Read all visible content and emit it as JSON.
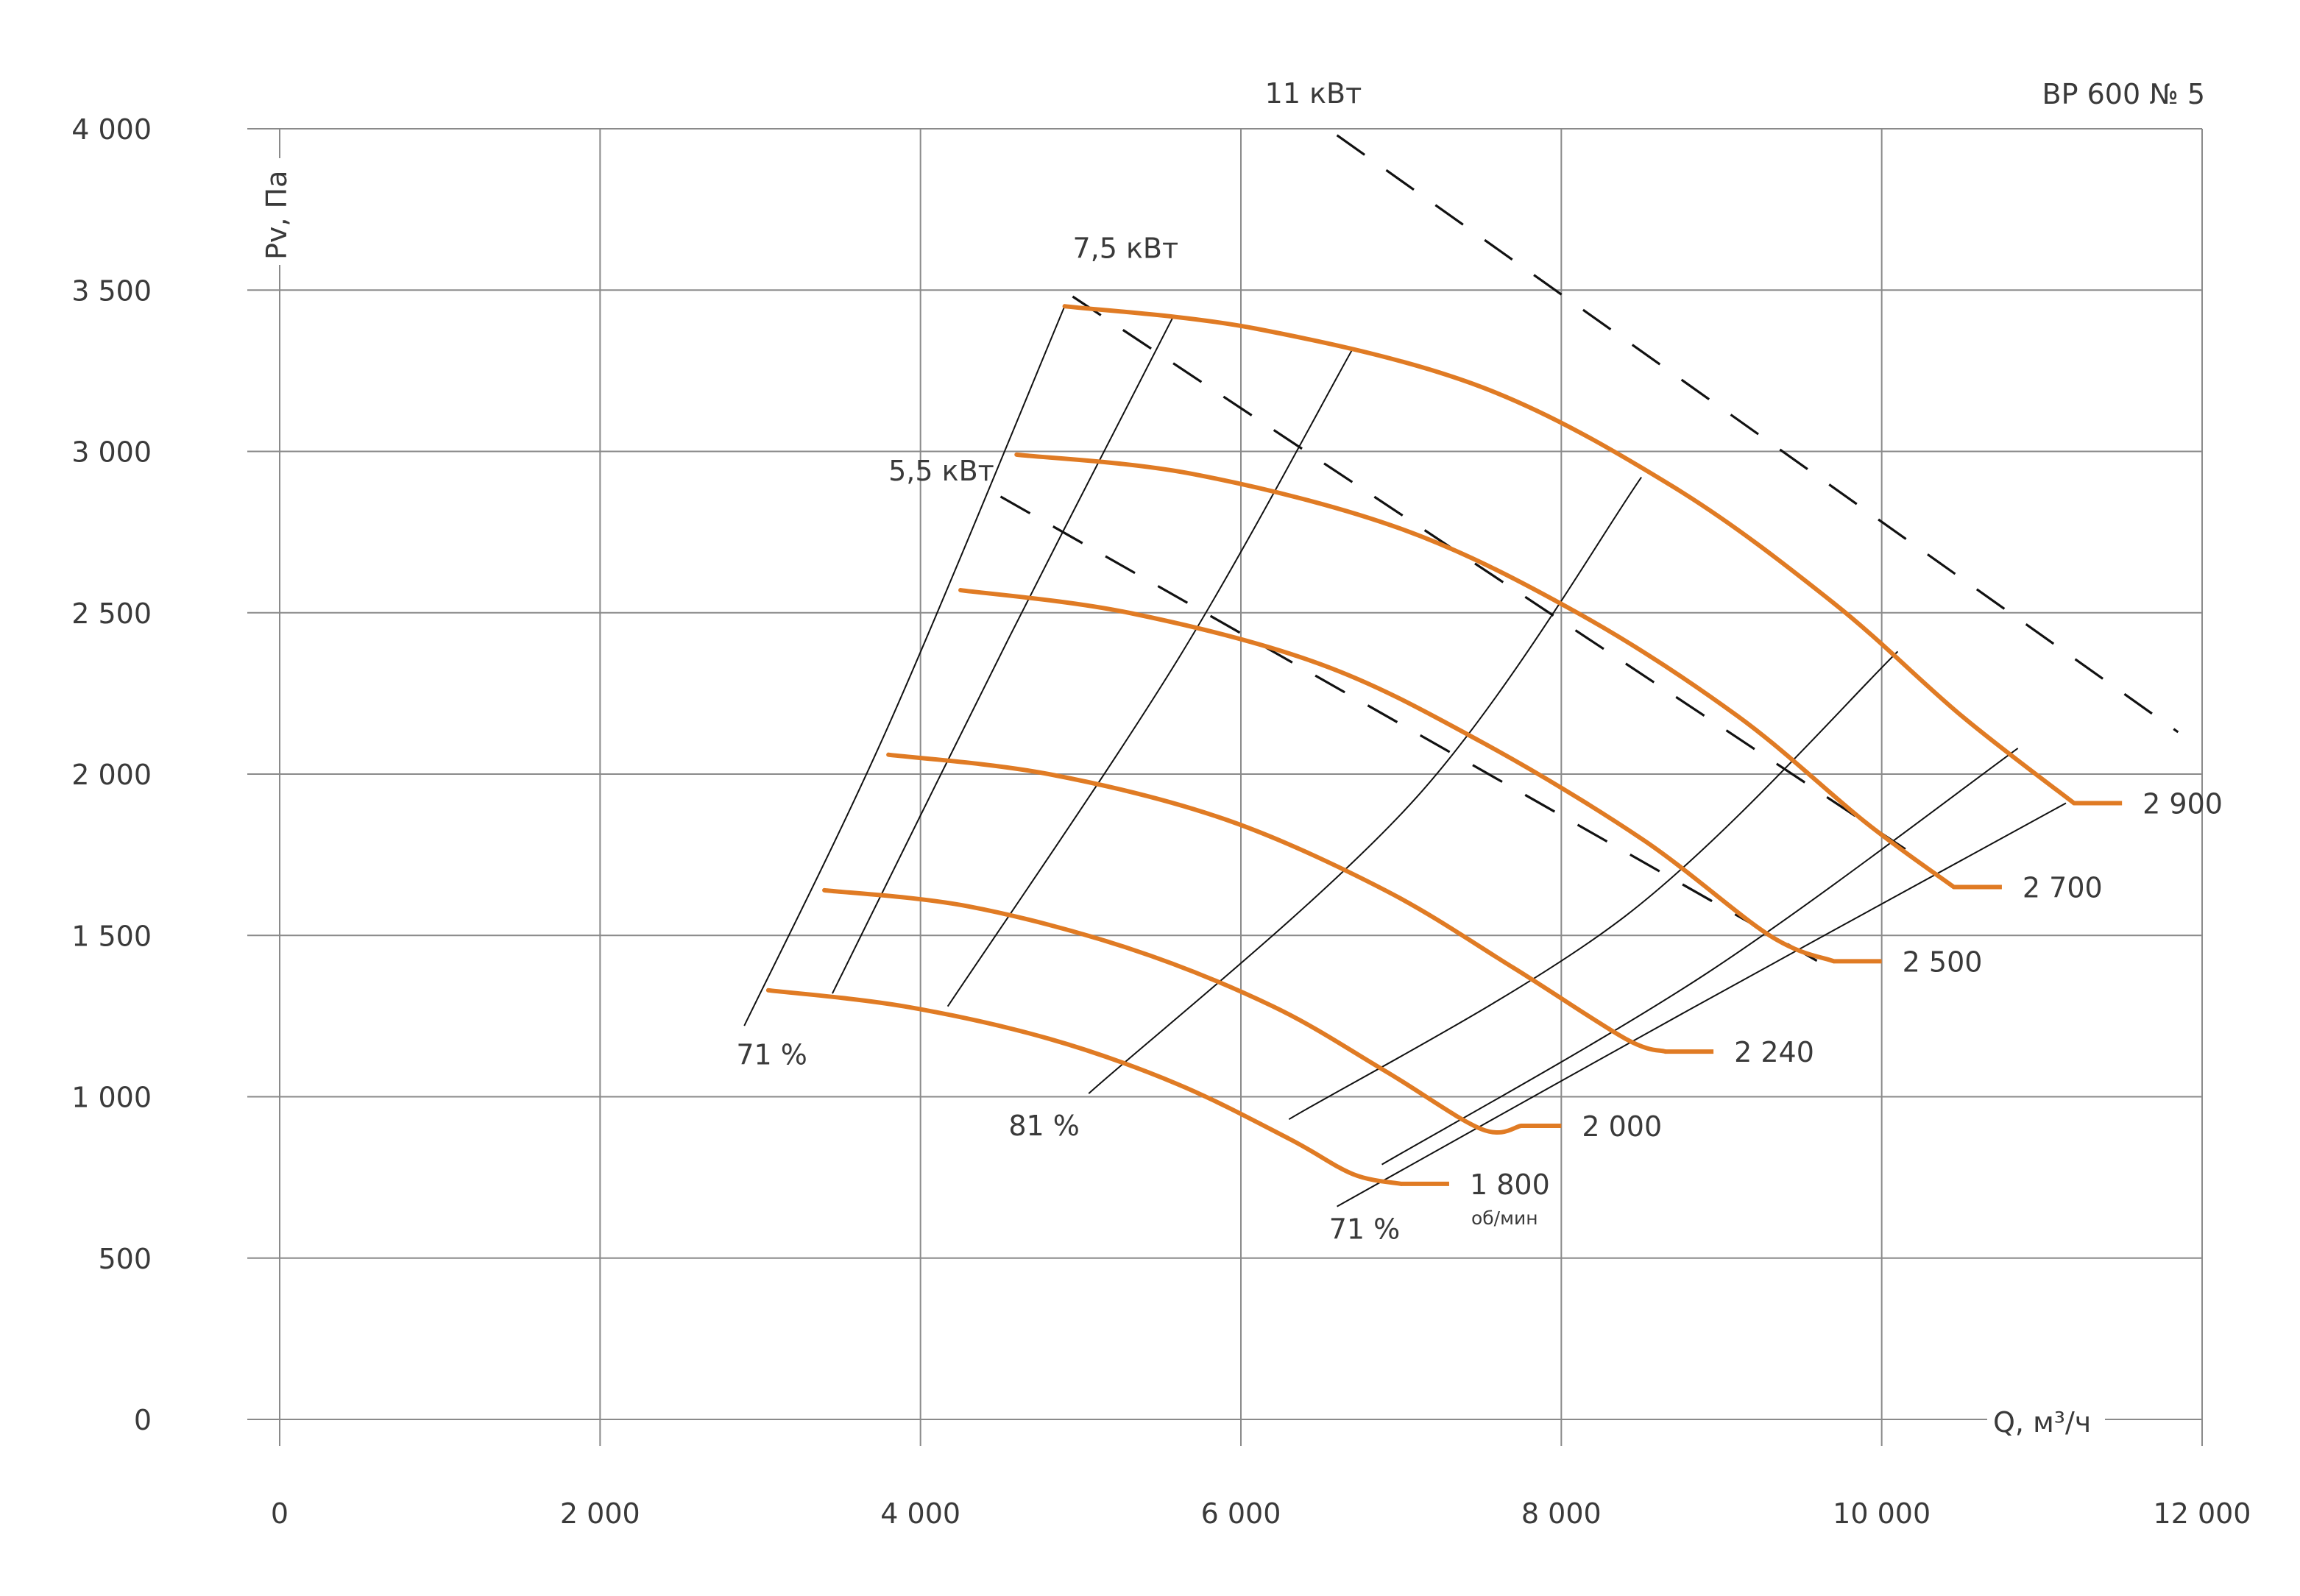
{
  "chart_data": {
    "type": "line",
    "title": "ВР 600 № 5",
    "xlabel": "Q, м³/ч",
    "ylabel": "Pv, Па",
    "xlim": [
      0,
      12000
    ],
    "ylim": [
      0,
      4000
    ],
    "x_ticks": [
      0,
      2000,
      4000,
      6000,
      8000,
      10000,
      12000
    ],
    "y_ticks": [
      0,
      500,
      1000,
      1500,
      2000,
      2500,
      3000,
      3500,
      4000
    ],
    "x_tick_labels": [
      "0",
      "2 000",
      "4 000",
      "6 000",
      "8 000",
      "10 000",
      "12 000"
    ],
    "y_tick_labels": [
      "0",
      "500",
      "1 000",
      "1 500",
      "2 000",
      "2 500",
      "3 000",
      "3 500",
      "4 000"
    ],
    "grid": true,
    "speed_unit": "об/мин",
    "accent_color": "#e07b24",
    "series": [
      {
        "name": "1 800",
        "x": [
          3050,
          3900,
          4800,
          5600,
          6300,
          6700,
          7000
        ],
        "y": [
          1330,
          1280,
          1180,
          1040,
          870,
          760,
          730
        ],
        "end": [
          7300,
          730
        ]
      },
      {
        "name": "2 000",
        "x": [
          3400,
          4300,
          5300,
          6200,
          6900,
          7500,
          7750
        ],
        "y": [
          1640,
          1590,
          1460,
          1280,
          1080,
          900,
          910
        ],
        "end": [
          8000,
          910
        ]
      },
      {
        "name": "2 240",
        "x": [
          3800,
          4800,
          5900,
          6900,
          7700,
          8400,
          8650
        ],
        "y": [
          2060,
          2000,
          1860,
          1640,
          1400,
          1180,
          1140
        ],
        "end": [
          8950,
          1140
        ]
      },
      {
        "name": "2 500",
        "x": [
          4250,
          5300,
          6500,
          7500,
          8500,
          9300,
          9700
        ],
        "y": [
          2570,
          2500,
          2340,
          2100,
          1800,
          1500,
          1420
        ],
        "end": [
          10000,
          1420
        ]
      },
      {
        "name": "2 700",
        "x": [
          4600,
          5700,
          7000,
          8100,
          9100,
          9900,
          10450
        ],
        "y": [
          2990,
          2930,
          2760,
          2500,
          2180,
          1850,
          1650
        ],
        "end": [
          10750,
          1650
        ]
      },
      {
        "name": "2 900",
        "x": [
          4900,
          6100,
          7500,
          8700,
          9700,
          10500,
          11200
        ],
        "y": [
          3450,
          3380,
          3200,
          2890,
          2530,
          2180,
          1910
        ],
        "end": [
          11500,
          1910
        ]
      }
    ],
    "efficiency_lines": [
      {
        "x": [
          2900,
          3800,
          4900
        ],
        "y": [
          1220,
          2150,
          3450
        ]
      },
      {
        "x": [
          3450,
          4550,
          5580
        ],
        "y": [
          1320,
          2420,
          3420
        ]
      },
      {
        "x": [
          4170,
          5600,
          6700
        ],
        "y": [
          1280,
          2350,
          3320
        ]
      },
      {
        "x": [
          5050,
          7100,
          8500
        ],
        "y": [
          1010,
          1930,
          2920
        ]
      },
      {
        "x": [
          6300,
          8400,
          10100
        ],
        "y": [
          930,
          1560,
          2380
        ]
      },
      {
        "x": [
          6880,
          8900,
          10850
        ],
        "y": [
          790,
          1380,
          2080
        ]
      },
      {
        "x": [
          6600,
          8800,
          11150
        ],
        "y": [
          660,
          1270,
          1910
        ]
      }
    ],
    "efficiency_labels": [
      {
        "text": "71 %",
        "x": 2850,
        "y": 1100
      },
      {
        "text": "81 %",
        "x": 4550,
        "y": 880
      },
      {
        "text": "71 %",
        "x": 6550,
        "y": 560
      }
    ],
    "power_lines": [
      {
        "label": "11 кВт",
        "x": [
          6600,
          11850
        ],
        "y": [
          3980,
          2130
        ],
        "label_at": [
          6150,
          4080
        ]
      },
      {
        "label": "7,5 кВт",
        "x": [
          4950,
          10200
        ],
        "y": [
          3480,
          1750
        ],
        "label_at": [
          4950,
          3600
        ]
      },
      {
        "label": "5,5 кВт",
        "x": [
          4500,
          9600
        ],
        "y": [
          2860,
          1420
        ],
        "label_at": [
          3800,
          2910
        ]
      }
    ]
  }
}
